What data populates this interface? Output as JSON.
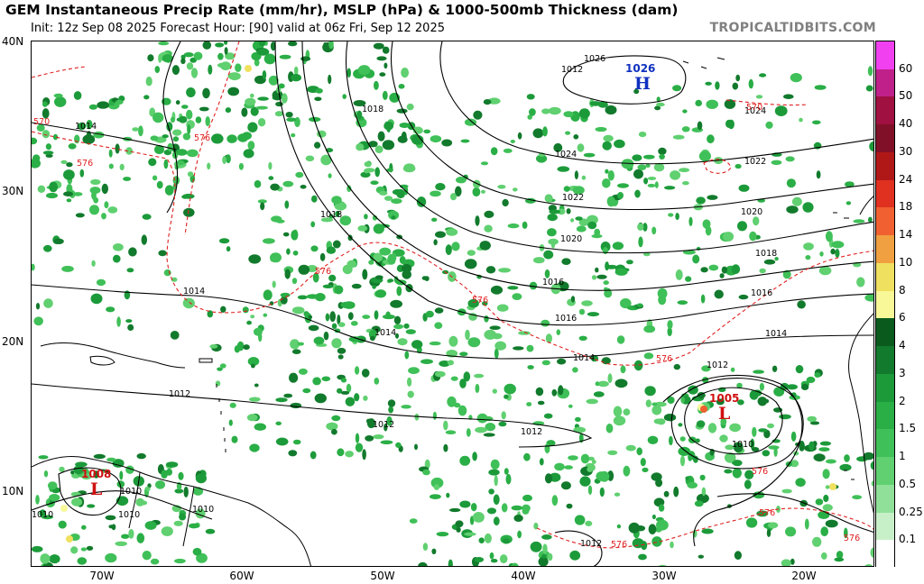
{
  "header": {
    "title": "GEM Instantaneous Precip Rate (mm/hr), MSLP (hPa) & 1000-500mb Thickness (dam)",
    "subtitle": "Init: 12z Sep 08 2025   Forecast Hour: [90]   valid at 06z Fri, Sep 12 2025",
    "brand": "TROPICALTIDBITS.COM"
  },
  "axes": {
    "lat_labels": [
      "40N",
      "30N",
      "20N",
      "10N"
    ],
    "lon_labels": [
      "70W",
      "60W",
      "50W",
      "40W",
      "30W",
      "20W"
    ]
  },
  "colors": {
    "isobar": "#000000",
    "thickness": "#e02020",
    "coast": "#000000",
    "high": "#1030c0",
    "low": "#d01010"
  },
  "colorbar": {
    "labels": [
      "60",
      "50",
      "40",
      "30",
      "24",
      "18",
      "14",
      "10",
      "8",
      "6",
      "4",
      "3",
      "2",
      "1.5",
      "1",
      "0.5",
      "0.25",
      "0.1"
    ],
    "colors": [
      "#f040f0",
      "#c0208a",
      "#a01040",
      "#801028",
      "#b01818",
      "#e03020",
      "#f06030",
      "#f0a040",
      "#f0e060",
      "#f8f898",
      "#0a5a1e",
      "#127a2c",
      "#1c9a3a",
      "#2aae46",
      "#40c058",
      "#60d070",
      "#90e09a",
      "#c8f0c8",
      "#ffffff"
    ]
  },
  "pressure_centers": [
    {
      "type": "high",
      "symbol": "H",
      "value": "1026"
    },
    {
      "type": "low",
      "symbol": "L",
      "value": "1005"
    },
    {
      "type": "low",
      "symbol": "L",
      "value": "1008"
    }
  ],
  "isobar_labels": [
    "1026",
    "1024",
    "1024",
    "1022",
    "1022",
    "1020",
    "1020",
    "1018",
    "1018",
    "1018",
    "1016",
    "1016",
    "1016",
    "1014",
    "1014",
    "1014",
    "1014",
    "1014",
    "1012",
    "1012",
    "1012",
    "1012",
    "1012",
    "1012",
    "1010",
    "1010",
    "1010",
    "1010",
    "1010"
  ],
  "thickness_labels": [
    "570",
    "576",
    "576",
    "576",
    "576",
    "576",
    "576",
    "576",
    "576",
    "576",
    "570"
  ]
}
